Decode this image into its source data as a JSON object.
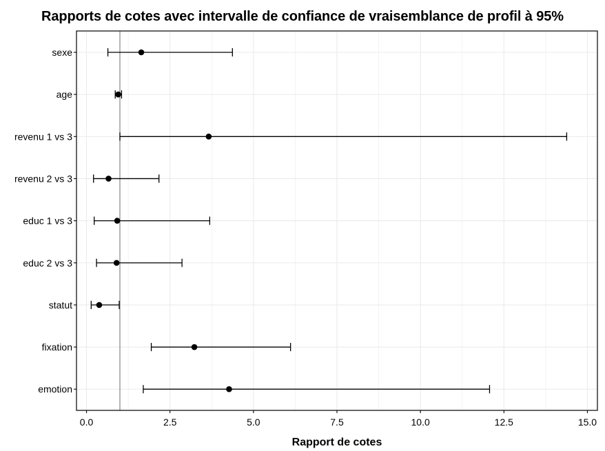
{
  "chart_data": {
    "type": "forest",
    "title": "Rapports de cotes avec intervalle de confiance de vraisemblance de profil à 95%",
    "xlabel": "Rapport de cotes",
    "ylabel": "",
    "xlim": [
      -0.3,
      15.3
    ],
    "xticks": [
      0.0,
      2.5,
      5.0,
      7.5,
      10.0,
      12.5,
      15.0
    ],
    "xtick_labels": [
      "0.0",
      "2.5",
      "5.0",
      "7.5",
      "10.0",
      "12.5",
      "15.0"
    ],
    "reference_line": 1,
    "grid": true,
    "categories": [
      "sexe",
      "age",
      "revenu 1 vs 3",
      "revenu 2 vs 3",
      "educ 1 vs 3",
      "educ 2 vs 3",
      "statut",
      "fixation",
      "emotion"
    ],
    "estimate": [
      1.64,
      0.95,
      3.66,
      0.66,
      0.92,
      0.9,
      0.38,
      3.23,
      4.27
    ],
    "ci_lower": [
      0.64,
      0.86,
      1.0,
      0.21,
      0.23,
      0.3,
      0.14,
      1.94,
      1.7
    ],
    "ci_upper": [
      4.37,
      1.05,
      14.38,
      2.17,
      3.69,
      2.86,
      0.98,
      6.11,
      12.07
    ],
    "colors": {
      "points": "#000000",
      "errorbars": "#000000",
      "reference_line": "#7a7a7a",
      "grid": "#ebebeb",
      "frame": "#000000"
    }
  }
}
